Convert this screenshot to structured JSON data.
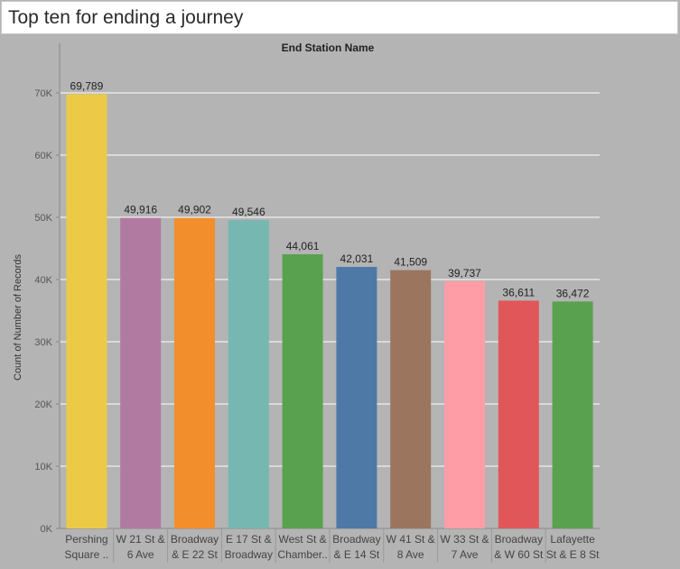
{
  "page": {
    "title": "Top ten for ending a journey"
  },
  "colors": {
    "background": "#b4b4b4",
    "gridline": "#ffffff",
    "axis_text": "#555555",
    "label_text": "#222222"
  },
  "chart_data": {
    "type": "bar",
    "title": "End Station Name",
    "xlabel": "",
    "ylabel": "Count of Number of Records",
    "ylim": [
      0,
      70000
    ],
    "yticks": [
      0,
      10000,
      20000,
      30000,
      40000,
      50000,
      60000,
      70000
    ],
    "ytick_labels": [
      "0K",
      "10K",
      "20K",
      "30K",
      "40K",
      "50K",
      "60K",
      "70K"
    ],
    "grid": true,
    "categories": [
      [
        "Pershing",
        "Square .."
      ],
      [
        "W 21 St &",
        "6 Ave"
      ],
      [
        "Broadway",
        "& E 22 St"
      ],
      [
        "E 17 St &",
        "Broadway"
      ],
      [
        "West St &",
        "Chamber.."
      ],
      [
        "Broadway",
        "& E 14 St"
      ],
      [
        "W 41 St &",
        "8 Ave"
      ],
      [
        "W 33 St &",
        "7 Ave"
      ],
      [
        "Broadway",
        "& W 60 St"
      ],
      [
        "Lafayette",
        "St & E 8 St"
      ]
    ],
    "values": [
      69789,
      49916,
      49902,
      49546,
      44061,
      42031,
      41509,
      39737,
      36611,
      36472
    ],
    "value_labels": [
      "69,789",
      "49,916",
      "49,902",
      "49,546",
      "44,061",
      "42,031",
      "41,509",
      "39,737",
      "36,611",
      "36,472"
    ],
    "bar_colors": [
      "#edc948",
      "#b07aa1",
      "#f28e2b",
      "#76b7b2",
      "#59a14f",
      "#4e79a7",
      "#9c755f",
      "#ff9da7",
      "#e15759",
      "#59a14f"
    ]
  }
}
